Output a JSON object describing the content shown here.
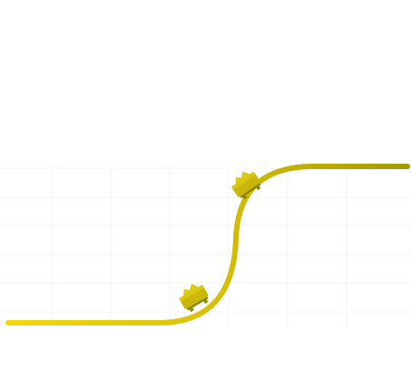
{
  "scene": {
    "description_free": true,
    "grid_visible": true,
    "colors": {
      "background": "#ffffff",
      "grid": "#f3f3f0",
      "track_start": "#f5d90a",
      "track_mid": "#d9c20a",
      "track_end": "#a09a00",
      "cart_body": "#c9b80a",
      "cart_dark": "#8f8600",
      "cart_load": "#dccb12"
    },
    "icons": {
      "track": "roller-coaster-track-icon",
      "cart_upper": "mine-cart-icon",
      "cart_lower": "mine-cart-icon"
    }
  }
}
